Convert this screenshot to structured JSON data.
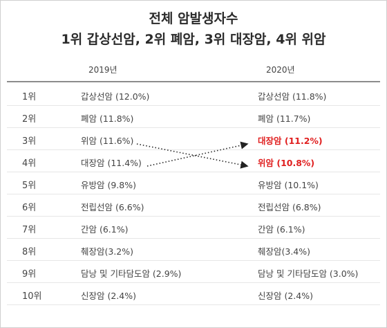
{
  "title": {
    "line1": "전체 암발생자수",
    "line2": "1위 갑상선암, 2위 폐암, 3위 대장암, 4위 위암"
  },
  "columns": {
    "y2019": "2019년",
    "y2020": "2020년"
  },
  "rows": [
    {
      "rank": "1위",
      "y2019": "갑상선암 (12.0%)",
      "y2020": "갑상선암 (11.8%)"
    },
    {
      "rank": "2위",
      "y2019": "폐암 (11.8%)",
      "y2020": "폐암 (11.7%)"
    },
    {
      "rank": "3위",
      "y2019": "위암 (11.6%)",
      "y2020": "대장암 (11.2%)"
    },
    {
      "rank": "4위",
      "y2019": "대장암 (11.4%)",
      "y2020": "위암 (10.8%)"
    },
    {
      "rank": "5위",
      "y2019": "유방암 (9.8%)",
      "y2020": "유방암 (10.1%)"
    },
    {
      "rank": "6위",
      "y2019": "전립선암 (6.6%)",
      "y2020": "전립선암 (6.8%)"
    },
    {
      "rank": "7위",
      "y2019": "간암 (6.1%)",
      "y2020": "간암 (6.1%)"
    },
    {
      "rank": "8위",
      "y2019": "췌장암(3.2%)",
      "y2020": "췌장암(3.4%)"
    },
    {
      "rank": "9위",
      "y2019": "담낭 및 기타담도암 (2.9%)",
      "y2020": "담낭 및 기타담도암 (3.0%)"
    },
    {
      "rank": "10위",
      "y2019": "신장암 (2.4%)",
      "y2020": "신장암 (2.4%)"
    }
  ],
  "colors": {
    "highlight": "#e01f1f",
    "text": "#444444",
    "rule": "#8c8c8c"
  }
}
